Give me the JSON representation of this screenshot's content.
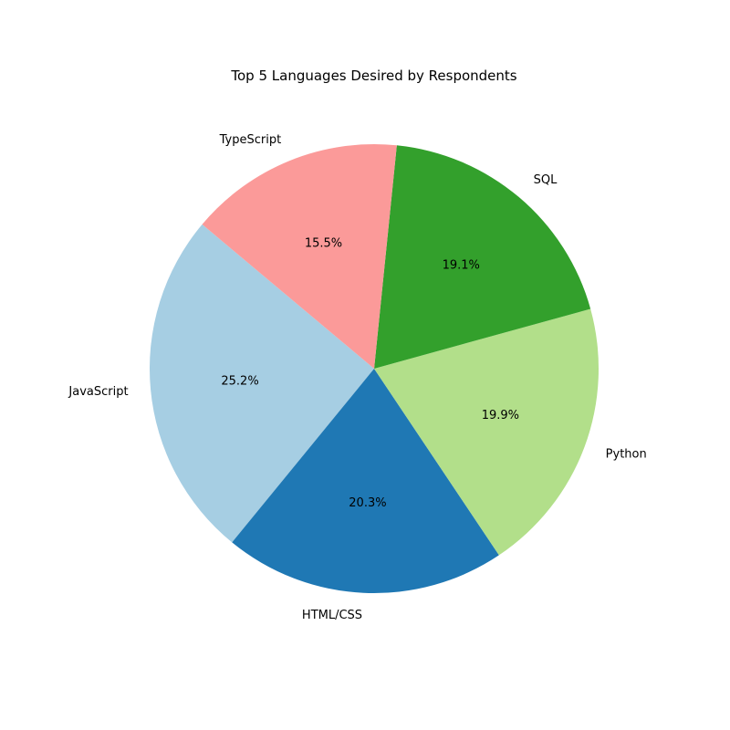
{
  "chart_data": {
    "type": "pie",
    "title": "Top 5 Languages Desired by Respondents",
    "slices": [
      {
        "label": "JavaScript",
        "percent": 25.2,
        "pct_text": "25.2%",
        "color": "#a6cee3"
      },
      {
        "label": "HTML/CSS",
        "percent": 20.3,
        "pct_text": "20.3%",
        "color": "#1f78b4"
      },
      {
        "label": "Python",
        "percent": 19.9,
        "pct_text": "19.9%",
        "color": "#b2df8a"
      },
      {
        "label": "SQL",
        "percent": 19.1,
        "pct_text": "19.1%",
        "color": "#33a02c"
      },
      {
        "label": "TypeScript",
        "percent": 15.5,
        "pct_text": "15.5%",
        "color": "#fb9a99"
      }
    ],
    "start_angle_deg": 140,
    "direction": "counterclockwise"
  }
}
